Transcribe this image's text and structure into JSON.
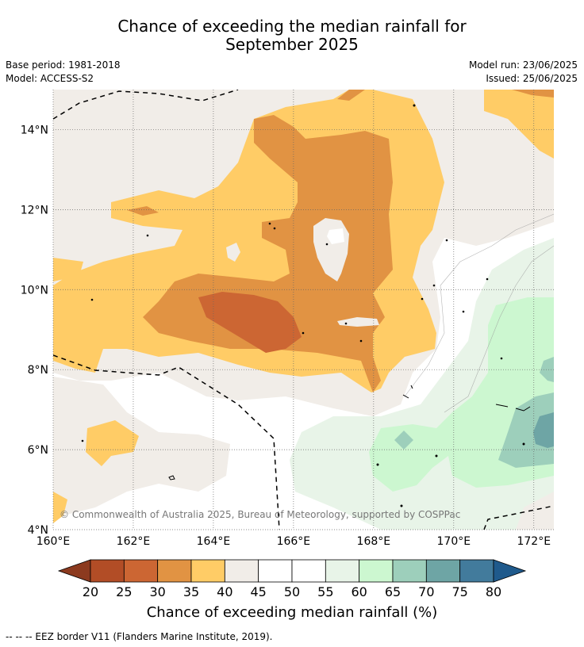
{
  "title": {
    "line1": "Chance of exceeding the median rainfall for",
    "line2": "September 2025"
  },
  "meta": {
    "base_period": "Base period: 1981-2018",
    "model": "Model: ACCESS-S2",
    "model_run": "Model run: 23/06/2025",
    "issued": "Issued: 25/06/2025"
  },
  "map": {
    "lon_labels": [
      "160°E",
      "162°E",
      "164°E",
      "166°E",
      "168°E",
      "170°E",
      "172°E"
    ],
    "lat_labels": [
      "14°N",
      "12°N",
      "10°N",
      "8°N",
      "6°N",
      "4°N"
    ],
    "lon_range": [
      160,
      172.5
    ],
    "lat_range": [
      4,
      15
    ],
    "copyright": "© Commonwealth of Australia 2025, Bureau of Meteorology, supported by COSPPac"
  },
  "colorbar": {
    "ticks": [
      "20",
      "25",
      "30",
      "35",
      "40",
      "45",
      "50",
      "55",
      "60",
      "65",
      "70",
      "75",
      "80"
    ],
    "colors": [
      "#8c3a1f",
      "#b24d26",
      "#cc6633",
      "#e19343",
      "#ffcc66",
      "#f1ede8",
      "#ffffff",
      "#ffffff",
      "#e8f4e8",
      "#ccf7d0",
      "#9dcfbb",
      "#6ea5a5",
      "#427b9c",
      "#1f5a8c"
    ],
    "title": "Chance of exceeding median rainfall (%)"
  },
  "footer": "--  --  -- EEZ border V11 (Flanders Marine Institute, 2019)."
}
